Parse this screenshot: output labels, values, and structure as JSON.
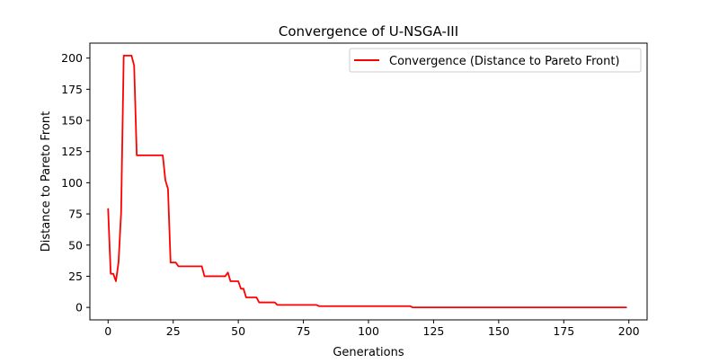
{
  "chart_data": {
    "type": "line",
    "title": "Convergence of U-NSGA-III",
    "xlabel": "Generations",
    "ylabel": "Distance to Pareto Front",
    "xlim": [
      -7,
      207
    ],
    "ylim": [
      -10,
      212
    ],
    "xticks": [
      0,
      25,
      50,
      75,
      100,
      125,
      150,
      175,
      200
    ],
    "yticks": [
      0,
      25,
      50,
      75,
      100,
      125,
      150,
      175,
      200
    ],
    "grid": false,
    "legend_position": "top-right",
    "series": [
      {
        "name": "Convergence (Distance to Pareto Front)",
        "color": "#ff0000",
        "x": [
          0,
          1,
          2,
          3,
          4,
          5,
          6,
          7,
          8,
          9,
          10,
          11,
          12,
          13,
          14,
          15,
          16,
          17,
          18,
          19,
          20,
          21,
          22,
          23,
          24,
          25,
          26,
          27,
          28,
          30,
          32,
          34,
          36,
          37,
          38,
          40,
          42,
          44,
          45,
          46,
          47,
          48,
          50,
          51,
          52,
          53,
          54,
          56,
          57,
          58,
          60,
          62,
          64,
          65,
          66,
          70,
          75,
          80,
          81,
          90,
          100,
          110,
          116,
          117,
          125,
          150,
          175,
          199
        ],
        "y": [
          79,
          27,
          27,
          21,
          36,
          76,
          202,
          202,
          202,
          202,
          194,
          122,
          122,
          122,
          122,
          122,
          122,
          122,
          122,
          122,
          122,
          122,
          102,
          95,
          36,
          36,
          36,
          33,
          33,
          33,
          33,
          33,
          33,
          25,
          25,
          25,
          25,
          25,
          25,
          28,
          21,
          21,
          21,
          15,
          15,
          8,
          8,
          8,
          8,
          4,
          4,
          4,
          4,
          2,
          2,
          2,
          2,
          2,
          1,
          1,
          1,
          1,
          1,
          0,
          0,
          0,
          0,
          0
        ]
      }
    ]
  }
}
